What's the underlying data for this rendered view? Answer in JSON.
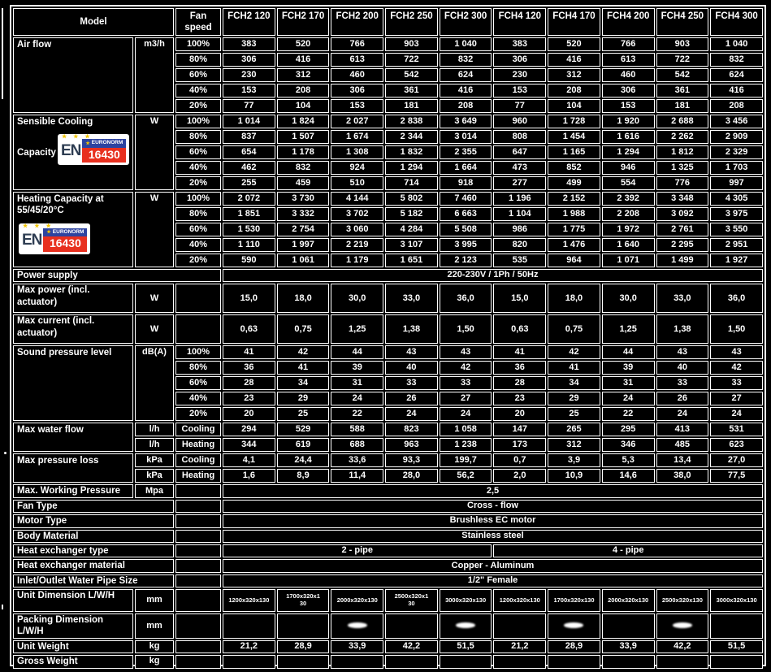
{
  "page": {
    "background": "#000000",
    "grid_color": "#ffffff",
    "text_color": "#ffffff"
  },
  "logo": {
    "en": "EN",
    "euronorm": "EURONORM",
    "code": "16430",
    "blue": "#2d43a0",
    "red": "#e8301f",
    "star_yellow": "#f2c500",
    "en_text_color": "#2e3d52"
  },
  "header": {
    "model": "Model",
    "fan_speed": "Fan speed",
    "columns": [
      "FCH2 120",
      "FCH2 170",
      "FCH2 200",
      "FCH2 250",
      "FCH2 300",
      "FCH4 120",
      "FCH4 170",
      "FCH4 200",
      "FCH4 250",
      "FCH4 300"
    ]
  },
  "blocks": [
    {
      "type": "multi",
      "label": "Air flow",
      "unit": "m3/h",
      "logo": false,
      "rows": [
        {
          "speed": "100%",
          "values": [
            "383",
            "520",
            "766",
            "903",
            "1 040",
            "383",
            "520",
            "766",
            "903",
            "1 040"
          ]
        },
        {
          "speed": "80%",
          "values": [
            "306",
            "416",
            "613",
            "722",
            "832",
            "306",
            "416",
            "613",
            "722",
            "832"
          ]
        },
        {
          "speed": "60%",
          "values": [
            "230",
            "312",
            "460",
            "542",
            "624",
            "230",
            "312",
            "460",
            "542",
            "624"
          ]
        },
        {
          "speed": "40%",
          "values": [
            "153",
            "208",
            "306",
            "361",
            "416",
            "153",
            "208",
            "306",
            "361",
            "416"
          ]
        },
        {
          "speed": "20%",
          "values": [
            "77",
            "104",
            "153",
            "181",
            "208",
            "77",
            "104",
            "153",
            "181",
            "208"
          ]
        }
      ]
    },
    {
      "type": "multi",
      "label": "Sensible Cooling Capacity",
      "unit": "W",
      "logo": true,
      "rows": [
        {
          "speed": "100%",
          "values": [
            "1 014",
            "1 824",
            "2 027",
            "2 838",
            "3 649",
            "960",
            "1 728",
            "1 920",
            "2 688",
            "3 456"
          ]
        },
        {
          "speed": "80%",
          "values": [
            "837",
            "1 507",
            "1 674",
            "2 344",
            "3 014",
            "808",
            "1 454",
            "1 616",
            "2 262",
            "2 909"
          ]
        },
        {
          "speed": "60%",
          "values": [
            "654",
            "1 178",
            "1 308",
            "1 832",
            "2 355",
            "647",
            "1 165",
            "1 294",
            "1 812",
            "2 329"
          ]
        },
        {
          "speed": "40%",
          "values": [
            "462",
            "832",
            "924",
            "1 294",
            "1 664",
            "473",
            "852",
            "946",
            "1 325",
            "1 703"
          ]
        },
        {
          "speed": "20%",
          "values": [
            "255",
            "459",
            "510",
            "714",
            "918",
            "277",
            "499",
            "554",
            "776",
            "997"
          ]
        }
      ]
    },
    {
      "type": "multi",
      "label": "Heating Capacity at 55/45/20°C",
      "unit": "W",
      "logo": true,
      "rows": [
        {
          "speed": "100%",
          "values": [
            "2 072",
            "3 730",
            "4 144",
            "5 802",
            "7 460",
            "1 196",
            "2 152",
            "2 392",
            "3 348",
            "4 305"
          ]
        },
        {
          "speed": "80%",
          "values": [
            "1 851",
            "3 332",
            "3 702",
            "5 182",
            "6 663",
            "1 104",
            "1 988",
            "2 208",
            "3 092",
            "3 975"
          ]
        },
        {
          "speed": "60%",
          "values": [
            "1 530",
            "2 754",
            "3 060",
            "4 284",
            "5 508",
            "986",
            "1 775",
            "1 972",
            "2 761",
            "3 550"
          ]
        },
        {
          "speed": "40%",
          "values": [
            "1 110",
            "1 997",
            "2 219",
            "3 107",
            "3 995",
            "820",
            "1 476",
            "1 640",
            "2 295",
            "2 951"
          ]
        },
        {
          "speed": "20%",
          "values": [
            "590",
            "1 061",
            "1 179",
            "1 651",
            "2 123",
            "535",
            "964",
            "1 071",
            "1 499",
            "1 927"
          ]
        }
      ]
    },
    {
      "type": "fullspan3",
      "label": "Power supply",
      "value": "220-230V / 1Ph / 50Hz"
    },
    {
      "type": "single10",
      "label": "Max power (incl. actuator)",
      "unit": "W",
      "values": [
        "15,0",
        "18,0",
        "30,0",
        "33,0",
        "36,0",
        "15,0",
        "18,0",
        "30,0",
        "33,0",
        "36,0"
      ]
    },
    {
      "type": "single10",
      "label": "Max current (incl. actuator)",
      "unit": "W",
      "values": [
        "0,63",
        "0,75",
        "1,25",
        "1,38",
        "1,50",
        "0,63",
        "0,75",
        "1,25",
        "1,38",
        "1,50"
      ]
    },
    {
      "type": "multi",
      "label": "Sound pressure level",
      "unit": "dB(A)",
      "logo": false,
      "rows": [
        {
          "speed": "100%",
          "values": [
            "41",
            "42",
            "44",
            "43",
            "43",
            "41",
            "42",
            "44",
            "43",
            "43"
          ]
        },
        {
          "speed": "80%",
          "values": [
            "36",
            "41",
            "39",
            "40",
            "42",
            "36",
            "41",
            "39",
            "40",
            "42"
          ]
        },
        {
          "speed": "60%",
          "values": [
            "28",
            "34",
            "31",
            "33",
            "33",
            "28",
            "34",
            "31",
            "33",
            "33"
          ]
        },
        {
          "speed": "40%",
          "values": [
            "23",
            "29",
            "24",
            "26",
            "27",
            "23",
            "29",
            "24",
            "26",
            "27"
          ]
        },
        {
          "speed": "20%",
          "values": [
            "20",
            "25",
            "22",
            "24",
            "24",
            "20",
            "25",
            "22",
            "24",
            "24"
          ]
        }
      ]
    },
    {
      "type": "multi2",
      "label": "Max water flow",
      "rows": [
        {
          "unit": "l/h",
          "mode": "Cooling",
          "values": [
            "294",
            "529",
            "588",
            "823",
            "1 058",
            "147",
            "265",
            "295",
            "413",
            "531"
          ]
        },
        {
          "unit": "l/h",
          "mode": "Heating",
          "values": [
            "344",
            "619",
            "688",
            "963",
            "1 238",
            "173",
            "312",
            "346",
            "485",
            "623"
          ]
        }
      ]
    },
    {
      "type": "multi2",
      "label": "Max pressure loss",
      "rows": [
        {
          "unit": "kPa",
          "mode": "Cooling",
          "values": [
            "4,1",
            "24,4",
            "33,6",
            "93,3",
            "199,7",
            "0,7",
            "3,9",
            "5,3",
            "13,4",
            "27,0"
          ]
        },
        {
          "unit": "kPa",
          "mode": "Heating",
          "values": [
            "1,6",
            "8,9",
            "11,4",
            "28,0",
            "56,2",
            "2,0",
            "10,9",
            "14,6",
            "38,0",
            "77,5"
          ]
        }
      ]
    },
    {
      "type": "fullspan2u",
      "label": "Max. Working Pressure",
      "unit": "Mpa",
      "value": "2,5"
    },
    {
      "type": "fullspan2",
      "label": "Fan Type",
      "value": "Cross - flow"
    },
    {
      "type": "fullspan2",
      "label": "Motor Type",
      "value": "Brushless EC motor"
    },
    {
      "type": "fullspan2",
      "label": "Body Material",
      "value": "Stainless steel"
    },
    {
      "type": "split2",
      "label": "Heat exchanger type",
      "value_left": "2 - pipe",
      "value_right": "4 - pipe"
    },
    {
      "type": "fullspan2",
      "label": "Heat exchanger material",
      "value": "Copper - Aluminum"
    },
    {
      "type": "fullspan2",
      "label": "Inlet/Outlet Water Pipe Size",
      "value": "1/2\" Female"
    },
    {
      "type": "single10",
      "label": "Unit Dimension L/W/H",
      "unit": "mm",
      "values": [
        "1200x320x130",
        "1700x320x1\n30",
        "2000x320x130",
        "2500x320x1\n30",
        "3000x320x130",
        "1200x320x130",
        "1700x320x130",
        "2000x320x130",
        "2500x320x130",
        "3000x320x130"
      ]
    },
    {
      "type": "single10",
      "label": "Packing Dimension L/W/H",
      "unit": "mm",
      "values": [
        "",
        "",
        "",
        "",
        "",
        "",
        "",
        "",
        "",
        ""
      ]
    },
    {
      "type": "single10",
      "label": "Unit Weight",
      "unit": "kg",
      "values": [
        "21,2",
        "28,9",
        "33,9",
        "42,2",
        "51,5",
        "21,2",
        "28,9",
        "33,9",
        "42,2",
        "51,5"
      ]
    },
    {
      "type": "single10",
      "label": "Gross Weight",
      "unit": "kg",
      "values": [
        "",
        "",
        "",
        "",
        "",
        "",
        "",
        "",
        "",
        ""
      ]
    }
  ]
}
